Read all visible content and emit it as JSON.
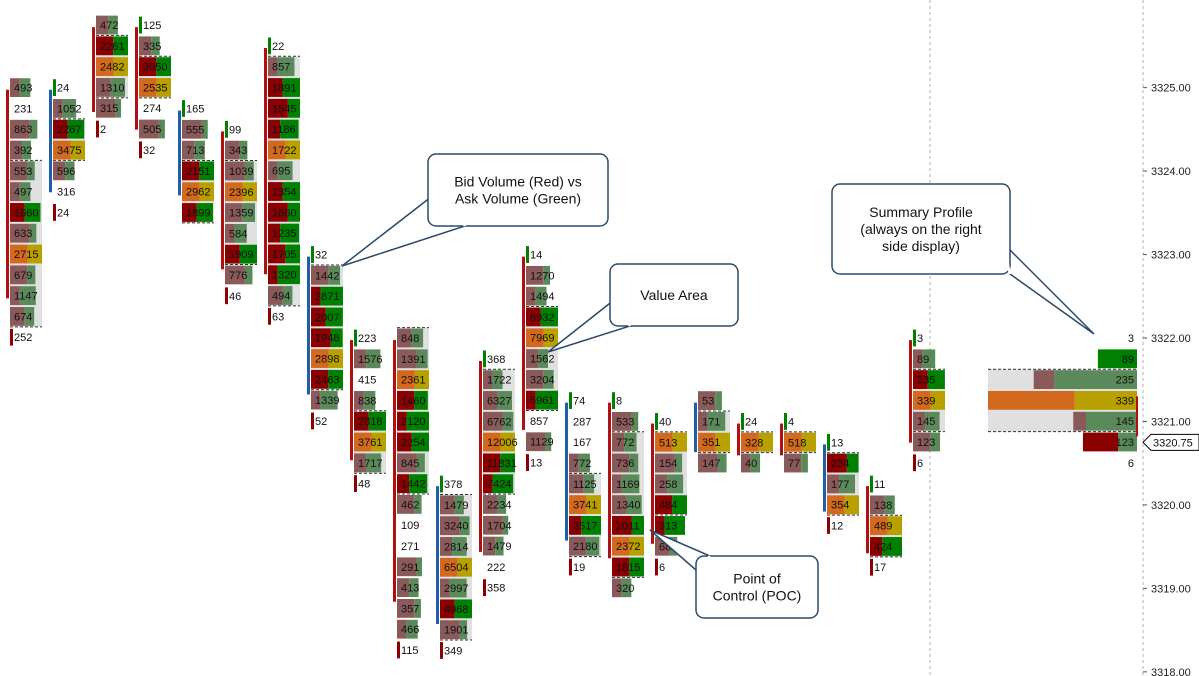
{
  "chart_data": {
    "type": "footprint",
    "colors": {
      "bid_dark": "#8b0000",
      "bid_mid": "#8a5a5a",
      "ask_dark": "#008000",
      "ask_mid": "#5a8a5a",
      "poc": "#d2691e",
      "value_area_high": "#b8a000",
      "value_area_bg": "#e0e0e0",
      "delta_pos": "#1f5fa8",
      "delta_neg": "#b01010",
      "grid": "#b0b0b0",
      "callout_border": "#2b4a6b",
      "callout_fill": "#ffffff",
      "price_line": "#000000"
    },
    "price_axis": {
      "ticks": [
        "3325.00",
        "3324.00",
        "3323.00",
        "3322.00",
        "3321.00",
        "3320.00",
        "3319.00",
        "3318.00"
      ],
      "tick_values": [
        3325,
        3324,
        3323,
        3322,
        3321,
        3320,
        3319,
        3318
      ],
      "last_price_label": "3320.75",
      "last_price_value": 3320.75,
      "ylim": [
        3317.95,
        3326.05
      ]
    },
    "bars": [
      {
        "top": 3325.0,
        "values": [
          "493",
          "231",
          "863",
          "392",
          "553",
          "497",
          "1660",
          "633",
          "2715",
          "679",
          "1147",
          "674",
          "252"
        ],
        "poc": 8,
        "va": [
          4,
          11
        ]
      },
      {
        "top": 3325.0,
        "values": [
          "24",
          "1052",
          "2267",
          "3475",
          "596",
          "316",
          "24"
        ],
        "poc": 3,
        "va": [
          2,
          3
        ]
      },
      {
        "top": 3325.75,
        "values": [
          "472",
          "2261",
          "2482",
          "1310",
          "315",
          "2"
        ],
        "poc": 2,
        "va": [
          1,
          3
        ]
      },
      {
        "top": 3325.75,
        "values": [
          "125",
          "335",
          "2050",
          "2535",
          "274",
          "505",
          "32"
        ],
        "poc": 3,
        "va": [
          2,
          3
        ]
      },
      {
        "top": 3324.75,
        "values": [
          "165",
          "555",
          "713",
          "2151",
          "2962",
          "1899"
        ],
        "poc": 4,
        "va": [
          3,
          5
        ]
      },
      {
        "top": 3324.5,
        "values": [
          "99",
          "343",
          "1039",
          "2396",
          "1359",
          "584",
          "1909",
          "776",
          "46"
        ],
        "poc": 3,
        "va": [
          2,
          6
        ]
      },
      {
        "top": 3325.5,
        "values": [
          "22",
          "857",
          "1891",
          "1545",
          "1186",
          "1722",
          "695",
          "1354",
          "1660",
          "1235",
          "1705",
          "1320",
          "494",
          "63"
        ],
        "poc": 5,
        "va": [
          1,
          12
        ]
      },
      {
        "top": 3323.0,
        "values": [
          "32",
          "1442",
          "2871",
          "2007",
          "1948",
          "2898",
          "2463",
          "1339",
          "52"
        ],
        "poc": 5,
        "va": [
          1,
          6
        ]
      },
      {
        "top": 3322.0,
        "values": [
          "223",
          "1576",
          "415",
          "838",
          "2818",
          "3761",
          "1717",
          "48"
        ],
        "poc": 5,
        "va": [
          4,
          6
        ]
      },
      {
        "top": 3322.0,
        "values": [
          "848",
          "1391",
          "2361",
          "1460",
          "2120",
          "2254",
          "845",
          "1442",
          "462",
          "109",
          "271",
          "291",
          "413",
          "357",
          "466",
          "115"
        ],
        "poc": 2,
        "va": [
          0,
          7
        ]
      },
      {
        "top": 3320.25,
        "values": [
          "378",
          "1479",
          "3240",
          "2814",
          "6504",
          "2997",
          "4968",
          "1901",
          "349"
        ],
        "poc": 4,
        "va": [
          1,
          7
        ]
      },
      {
        "top": 3321.75,
        "values": [
          "368",
          "1722",
          "6327",
          "6762",
          "12006",
          "11831",
          "7424",
          "2234",
          "1704",
          "1479",
          "222",
          "358"
        ],
        "poc": 4,
        "va": [
          1,
          6
        ]
      },
      {
        "top": 3323.0,
        "values": [
          "14",
          "1270",
          "1494",
          "6932",
          "7969",
          "1562",
          "3204",
          "5961",
          "857",
          "1129",
          "13"
        ],
        "poc": 4,
        "va": [
          3,
          7
        ]
      },
      {
        "top": 3321.25,
        "values": [
          "74",
          "287",
          "167",
          "772",
          "1125",
          "3741",
          "3517",
          "2180",
          "19"
        ],
        "poc": 5,
        "va": [
          4,
          7
        ]
      },
      {
        "top": 3321.25,
        "values": [
          "8",
          "533",
          "772",
          "736",
          "1169",
          "1340",
          "2011",
          "2372",
          "1815",
          "320"
        ],
        "poc": 7,
        "va": [
          2,
          8
        ]
      },
      {
        "top": 3321.0,
        "values": [
          "40",
          "513",
          "154",
          "258",
          "484",
          "313",
          "68",
          "6"
        ],
        "poc": 1,
        "va": [
          1,
          4
        ]
      },
      {
        "top": 3321.25,
        "values": [
          "53",
          "171",
          "351",
          "147"
        ],
        "poc": 2,
        "va": [
          1,
          2
        ]
      },
      {
        "top": 3321.0,
        "values": [
          "24",
          "328",
          "40"
        ],
        "poc": 1,
        "va": [
          1,
          1
        ]
      },
      {
        "top": 3321.0,
        "values": [
          "4",
          "518",
          "77"
        ],
        "poc": 1,
        "va": [
          1,
          1
        ]
      },
      {
        "top": 3320.75,
        "values": [
          "13",
          "234",
          "177",
          "354",
          "12"
        ],
        "poc": 3,
        "va": [
          1,
          3
        ]
      },
      {
        "top": 3320.25,
        "values": [
          "11",
          "138",
          "489",
          "424",
          "17"
        ],
        "poc": 2,
        "va": [
          2,
          3
        ]
      },
      {
        "top": 3322.0,
        "values": [
          "3",
          "89",
          "235",
          "339",
          "145",
          "123",
          "6"
        ],
        "poc": 3,
        "va": [
          2,
          4
        ]
      }
    ],
    "summary_profile": {
      "top": 3322.0,
      "values": [
        "3",
        "89",
        "235",
        "339",
        "145",
        "123",
        "6"
      ],
      "poc": 3,
      "va": [
        2,
        4
      ]
    },
    "annotations": [
      {
        "text": [
          "Bid Volume (Red) vs",
          "Ask Volume (Green)"
        ]
      },
      {
        "text": [
          "Value Area"
        ]
      },
      {
        "text": [
          "Summary Profile",
          "(always on the right",
          "side display)"
        ]
      },
      {
        "text": [
          "Point of",
          "Control (POC)"
        ]
      }
    ]
  }
}
